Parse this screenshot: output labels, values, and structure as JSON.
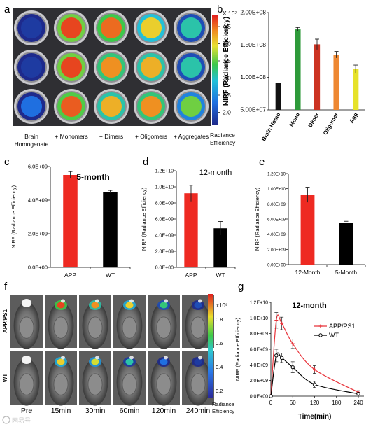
{
  "panel_letters": [
    "a",
    "b",
    "c",
    "d",
    "e",
    "f",
    "g"
  ],
  "well_plate": {
    "colorbar_exponent": "X 10⁷",
    "colorbar_ticks": [
      "4.5",
      "4.0",
      "3.5",
      "3.0",
      "2.5",
      "2.0"
    ],
    "colorbar_label_1": "Radiance",
    "colorbar_label_2": "Efficiency",
    "columns": [
      "Brain\nHomogenate",
      "+ Monomers",
      "+ Dimers",
      "+ Oligomers",
      "+ Aggregates"
    ],
    "well_intensity_rows": [
      [
        0.05,
        0.95,
        0.9,
        0.75,
        0.45
      ],
      [
        0.05,
        0.95,
        0.85,
        0.8,
        0.45
      ],
      [
        0.2,
        0.92,
        0.8,
        0.85,
        0.6
      ]
    ]
  },
  "mouse_images": {
    "row_labels": [
      "APP/PS1",
      "WT"
    ],
    "time_labels": [
      "Pre",
      "15min",
      "30min",
      "60min",
      "120min",
      "240min"
    ],
    "colorbar_exponent": "x10⁹",
    "colorbar_ticks": [
      "0.8",
      "0.6",
      "0.4",
      "0.2"
    ],
    "colorbar_label_1": "Radiance",
    "colorbar_label_2": "Efficiency",
    "signal_rows": [
      [
        0.0,
        0.95,
        0.85,
        0.75,
        0.5,
        0.1
      ],
      [
        0.0,
        0.75,
        0.7,
        0.45,
        0.2,
        0.05
      ]
    ]
  },
  "chart_data": [
    {
      "id": "b",
      "type": "bar",
      "categories": [
        "Brain Homo",
        "Mono",
        "Dimer",
        "Oligomer",
        "Agg"
      ],
      "values": [
        92000000,
        174000000,
        151000000,
        135000000,
        113000000
      ],
      "errors": [
        0,
        3000000,
        8000000,
        5000000,
        6000000
      ],
      "colors": [
        "#111111",
        "#2e9a3a",
        "#cc3322",
        "#ee8833",
        "#e6e22a"
      ],
      "ylabel": "NIRF (Radiance Efficiency)",
      "ylim": [
        50000000,
        200000000
      ],
      "yticks": [
        "5.00E+07",
        "1.00E+08",
        "1.50E+08",
        "2.00E+08"
      ]
    },
    {
      "id": "c",
      "type": "bar",
      "title": "5-month",
      "categories": [
        "APP",
        "WT"
      ],
      "values": [
        5500000000,
        4500000000
      ],
      "errors": [
        200000000,
        80000000
      ],
      "colors": [
        "#ee2a22",
        "#000000"
      ],
      "ylabel": "NIRF (Radiance Efficiency)",
      "ylim": [
        0,
        6000000000
      ],
      "yticks": [
        "0.0E+00",
        "2.0E+09",
        "4.0E+09",
        "6.0E+09"
      ]
    },
    {
      "id": "d",
      "type": "bar",
      "title": "12-month",
      "categories": [
        "APP",
        "WT"
      ],
      "values": [
        9200000000,
        4850000000
      ],
      "errors": [
        1000000000,
        850000000
      ],
      "colors": [
        "#ee2a22",
        "#000000"
      ],
      "ylabel": "NIRF (Radiance Efficiency)",
      "ylim": [
        0,
        12000000000
      ],
      "yticks": [
        "0.0E+00",
        "2.0E+09",
        "4.0E+09",
        "6.0E+09",
        "8.0E+09",
        "1.0E+10",
        "1.2E+10"
      ]
    },
    {
      "id": "e",
      "type": "bar",
      "categories": [
        "12-Month",
        "5-Month"
      ],
      "values": [
        9200000000,
        5500000000
      ],
      "errors": [
        1000000000,
        200000000
      ],
      "colors": [
        "#ee2a22",
        "#000000"
      ],
      "ylabel": "NIRF (Radiance Efficiency)",
      "ylim": [
        0,
        12000000000
      ],
      "yticks": [
        "0.00E+00",
        "2.00E+09",
        "4.00E+09",
        "6.00E+09",
        "8.00E+09",
        "1.00E+10",
        "1.20E+10"
      ]
    },
    {
      "id": "g",
      "type": "line",
      "title": "12-month",
      "xlabel": "Time(min)",
      "ylabel": "NIRF (Radiance Efficiency)",
      "xlim": [
        0,
        240
      ],
      "xticks": [
        "0",
        "60",
        "120",
        "180",
        "240"
      ],
      "ylim": [
        0,
        12000000000
      ],
      "yticks": [
        "0.0E+00",
        "2.0E+09",
        "4.0E+09",
        "6.0E+09",
        "8.0E+09",
        "1.0E+10",
        "1.2E+10"
      ],
      "legend_position": "top-right",
      "series": [
        {
          "name": "APP/PS1",
          "color": "#e8333a",
          "marker": "cross",
          "x": [
            0,
            15,
            30,
            60,
            120,
            240
          ],
          "y": [
            0,
            9700000000,
            9300000000,
            6700000000,
            3400000000,
            500000000
          ],
          "errors": [
            0,
            1000000000,
            800000000,
            600000000,
            500000000,
            200000000
          ]
        },
        {
          "name": "WT",
          "color": "#000000",
          "marker": "circle",
          "x": [
            0,
            15,
            30,
            60,
            120,
            240
          ],
          "y": [
            0,
            5200000000,
            4900000000,
            3700000000,
            1500000000,
            300000000
          ],
          "errors": [
            0,
            800000000,
            600000000,
            700000000,
            400000000,
            150000000
          ]
        }
      ]
    }
  ],
  "watermark": "网易号"
}
